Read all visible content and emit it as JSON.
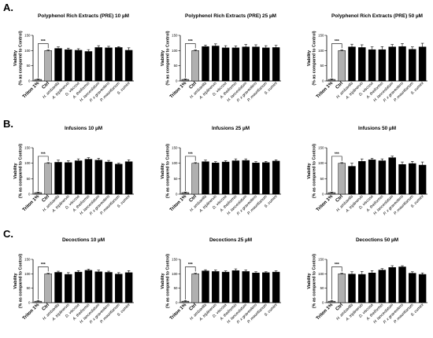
{
  "figure": {
    "row_labels": [
      "A.",
      "B.",
      "C."
    ]
  },
  "colors": {
    "triton": "#808080",
    "ctrl": "#b0b0b0",
    "extract": "#000000",
    "axis": "#000000"
  },
  "chart_data": [
    {
      "type": "bar",
      "title": "Polyphenol Rich Extracts (PRE) 10 µM",
      "ylabel_lines": [
        "Viability",
        "(% as compared to Control)"
      ],
      "ylim": [
        0,
        150
      ],
      "yticks": [
        "0",
        "50",
        "100",
        "150"
      ],
      "categories": [
        "Triton 1%",
        "Ctrl",
        "H. ambavilla",
        "A. triplinervis",
        "D. viscosa",
        "A. theiformis",
        "H. lanceolatum",
        "P. x graveolens",
        "P. mauritianum",
        "S. cumini"
      ],
      "values": [
        5,
        100,
        107,
        103,
        101,
        97,
        110,
        109,
        110,
        101
      ],
      "errors": [
        2,
        2,
        5,
        5,
        5,
        6,
        6,
        5,
        3,
        8
      ],
      "significance": "***"
    },
    {
      "type": "bar",
      "title": "Polyphenol Rich Extracts (PRE) 25 µM",
      "ylabel_lines": [
        "Viability",
        "(% as compared to Control)"
      ],
      "ylim": [
        0,
        150
      ],
      "yticks": [
        "0",
        "50",
        "100",
        "150"
      ],
      "categories": [
        "Triton 1%",
        "Ctrl",
        "H. ambavilla",
        "A. triplinervis",
        "D. viscosa",
        "A. theiformis",
        "H. lanceolatum",
        "P. x graveolens",
        "P. mauritianum",
        "S. cumini"
      ],
      "values": [
        5,
        100,
        113,
        115,
        109,
        109,
        112,
        112,
        109,
        110
      ],
      "errors": [
        2,
        2,
        5,
        7,
        7,
        6,
        8,
        7,
        7,
        7
      ],
      "significance": "***"
    },
    {
      "type": "bar",
      "title": "Polyphenol Rich  Extracts (PRE) 50 µM",
      "ylabel_lines": [
        "Viability",
        "(% as compared to Control)"
      ],
      "ylim": [
        0,
        150
      ],
      "yticks": [
        "0",
        "50",
        "100",
        "150"
      ],
      "categories": [
        "Triton 1%",
        "Ctrl",
        "H. ambavilla",
        "A. triplinervis",
        "D. viscosa",
        "A. theiformis",
        "H. lanceolatum",
        "P. x graveolens",
        "P. mauritianum",
        "S. cumini"
      ],
      "values": [
        5,
        100,
        112,
        110,
        103,
        103,
        112,
        113,
        104,
        112
      ],
      "errors": [
        2,
        2,
        9,
        9,
        9,
        10,
        8,
        10,
        8,
        12
      ],
      "significance": "***"
    },
    {
      "type": "bar",
      "title": "Infusions 10 µM",
      "ylabel_lines": [
        "Viability",
        "(% as compared to Control)"
      ],
      "ylim": [
        0,
        150
      ],
      "yticks": [
        "0",
        "50",
        "100",
        "150"
      ],
      "categories": [
        "Triton 1%",
        "Ctrl",
        "H. ambavilla",
        "A. triplinervis",
        "D. viscosa",
        "A. theiformis",
        "H. lanceolatum",
        "P. x graveolens",
        "P. mauritianum",
        "S. cumini"
      ],
      "values": [
        5,
        100,
        103,
        102,
        108,
        113,
        110,
        104,
        97,
        105
      ],
      "errors": [
        2,
        2,
        7,
        6,
        6,
        5,
        6,
        5,
        3,
        6
      ],
      "significance": "***"
    },
    {
      "type": "bar",
      "title": "Infusions 25 µM",
      "ylabel_lines": [
        "Viability",
        "(% as compared to Control)"
      ],
      "ylim": [
        0,
        150
      ],
      "yticks": [
        "0",
        "50",
        "100",
        "150"
      ],
      "categories": [
        "Triton 1%",
        "Ctrl",
        "H. ambavilla",
        "A. triplinervis",
        "D. viscosa",
        "A. theiformis",
        "H. lanceolatum",
        "P. x graveolens",
        "P. mauritianum",
        "S. cumini"
      ],
      "values": [
        5,
        100,
        105,
        101,
        104,
        108,
        109,
        101,
        102,
        107
      ],
      "errors": [
        2,
        2,
        5,
        4,
        4,
        6,
        5,
        4,
        4,
        4
      ],
      "significance": "***"
    },
    {
      "type": "bar",
      "title": "Infusions 50 µM",
      "ylabel_lines": [
        "Viability",
        "(% as compared to Control)"
      ],
      "ylim": [
        0,
        150
      ],
      "yticks": [
        "0",
        "50",
        "100",
        "150"
      ],
      "categories": [
        "Triton 1%",
        "Ctrl",
        "H. ambavilla",
        "A. triplinervis",
        "D. viscosa",
        "A. theiformis",
        "H. lanceolatum",
        "P. x graveolens",
        "P. mauritianum",
        "S. cumini"
      ],
      "values": [
        5,
        100,
        90,
        106,
        111,
        108,
        118,
        96,
        99,
        94
      ],
      "errors": [
        2,
        2,
        10,
        8,
        5,
        6,
        5,
        8,
        7,
        10
      ],
      "significance": "***"
    },
    {
      "type": "bar",
      "title": "Decoctions 10 µM",
      "ylabel_lines": [
        "Viability",
        "(% as compared to Control)"
      ],
      "ylim": [
        0,
        150
      ],
      "yticks": [
        "0",
        "50",
        "100",
        "150"
      ],
      "categories": [
        "Triton 1%",
        "Ctrl",
        "H. ambavilla",
        "A. triplinervis",
        "D. viscosa",
        "A. theiformis",
        "H. lanceolatum",
        "P. x graveolens",
        "P. mauritianum",
        "S. cumini"
      ],
      "values": [
        5,
        100,
        105,
        98,
        106,
        112,
        107,
        105,
        99,
        104
      ],
      "errors": [
        2,
        2,
        4,
        6,
        5,
        4,
        6,
        4,
        5,
        7
      ],
      "significance": "***"
    },
    {
      "type": "bar",
      "title": "Decoctions 25 µM",
      "ylabel_lines": [
        "Viability",
        "(% as compared to Control)"
      ],
      "ylim": [
        0,
        150
      ],
      "yticks": [
        "0",
        "50",
        "100",
        "150"
      ],
      "categories": [
        "Triton 1%",
        "Ctrl",
        "H. ambavilla",
        "A. triplinervis",
        "D. viscosa",
        "A. theiformis",
        "H. lanceolatum",
        "P. x graveolens",
        "P. mauritianum",
        "S. cumini"
      ],
      "values": [
        5,
        100,
        110,
        108,
        106,
        111,
        108,
        103,
        104,
        106
      ],
      "errors": [
        2,
        2,
        4,
        5,
        4,
        6,
        5,
        4,
        3,
        4
      ],
      "significance": "***"
    },
    {
      "type": "bar",
      "title": "Decoctions 50 µM",
      "ylabel_lines": [
        "Viability",
        "(% as compared to Control)"
      ],
      "ylim": [
        0,
        150
      ],
      "yticks": [
        "0",
        "50",
        "100",
        "150"
      ],
      "categories": [
        "Triton 1%",
        "Ctrl",
        "H. ambavilla",
        "A. triplinervis",
        "D. viscosa",
        "A. theiformis",
        "H. lanceolatum",
        "P. x graveolens",
        "P. mauritianum",
        "S. cumini"
      ],
      "values": [
        5,
        100,
        99,
        98,
        103,
        113,
        122,
        124,
        102,
        98
      ],
      "errors": [
        2,
        2,
        8,
        10,
        8,
        5,
        6,
        4,
        5,
        5
      ],
      "significance": "***"
    }
  ]
}
